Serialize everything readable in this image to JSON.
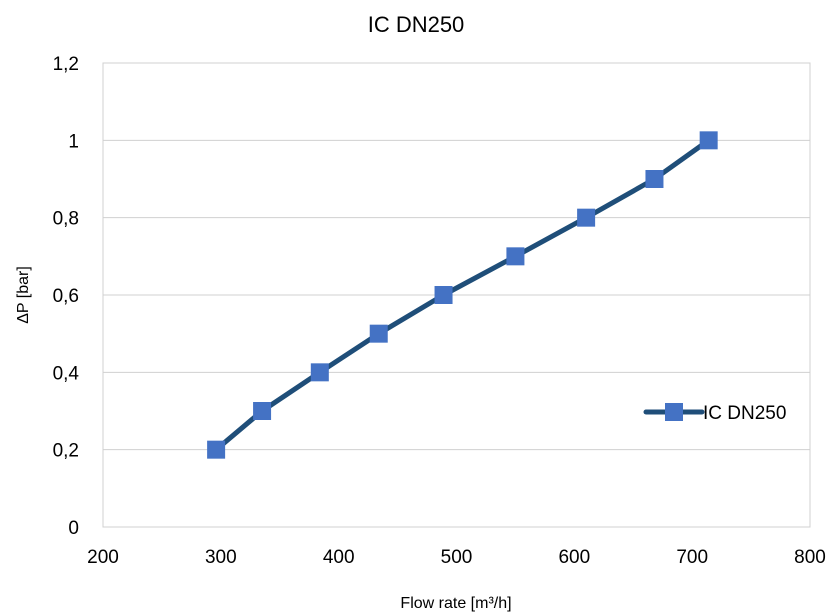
{
  "chart_data": {
    "type": "line",
    "title": "IC DN250",
    "xlabel": "Flow rate [m³/h]",
    "ylabel": "ΔP [bar]",
    "xlim": [
      200,
      800
    ],
    "ylim": [
      0,
      1.2
    ],
    "x_ticks": [
      "200",
      "300",
      "400",
      "500",
      "600",
      "700",
      "800"
    ],
    "y_ticks": [
      "0",
      "0,2",
      "0,4",
      "0,6",
      "0,8",
      "1",
      "1,2"
    ],
    "grid": "horizontal",
    "legend_position": "right",
    "series": [
      {
        "name": "IC DN250",
        "line_color": "#1F4E79",
        "marker_color": "#4472C4",
        "marker": "square",
        "x": [
          296,
          335,
          384,
          434,
          489,
          550,
          610,
          668,
          714
        ],
        "y": [
          0.2,
          0.3,
          0.4,
          0.5,
          0.6,
          0.7,
          0.8,
          0.9,
          1.0
        ]
      }
    ]
  }
}
